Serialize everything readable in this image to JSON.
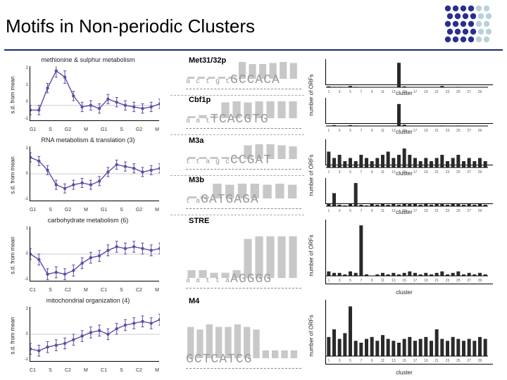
{
  "page": {
    "title": "Motifs in Non-periodic Clusters",
    "title_fontsize": 26,
    "accent_color": "#1a2a6c",
    "logo_colors": {
      "dark": "#2a2f8f",
      "light": "#b7d2da"
    }
  },
  "line_charts": [
    {
      "title": "methionine & sulphur metabolism",
      "ylabel": "s.d. from mean",
      "xticks": [
        "G1",
        "S",
        "G2",
        "M",
        "G1",
        "S",
        "G2",
        "M"
      ],
      "ylim": [
        -1,
        2.5
      ],
      "yticks": [
        "-1",
        "0",
        "1",
        "2"
      ],
      "values": [
        -0.3,
        -0.3,
        1.1,
        2.2,
        1.8,
        0.6,
        -0.1,
        0.0,
        -0.2,
        0.4,
        0.2,
        0.0,
        -0.1,
        -0.2,
        -0.1,
        0.1
      ],
      "errors": [
        0.3,
        0.3,
        0.3,
        0.4,
        0.4,
        0.3,
        0.3,
        0.3,
        0.3,
        0.3,
        0.3,
        0.3,
        0.3,
        0.3,
        0.3,
        0.3
      ],
      "color": "#5a4ea6",
      "marker": "circle"
    },
    {
      "title": "RNA metabolism & translation (3)",
      "ylabel": "s.d. from mean",
      "xticks": [
        "G1",
        "S",
        "G2",
        "M",
        "G1",
        "S",
        "G2",
        "M"
      ],
      "ylim": [
        -1.5,
        1.5
      ],
      "yticks": [
        "-1",
        "0",
        "1"
      ],
      "values": [
        0.9,
        0.7,
        0.2,
        -0.6,
        -0.8,
        -0.6,
        -0.5,
        -0.6,
        -0.4,
        0.1,
        0.5,
        0.4,
        0.3,
        0.1,
        0.2,
        0.3
      ],
      "errors": [
        0.25,
        0.25,
        0.25,
        0.25,
        0.25,
        0.25,
        0.25,
        0.25,
        0.25,
        0.25,
        0.25,
        0.25,
        0.25,
        0.25,
        0.25,
        0.25
      ],
      "color": "#5a4ea6",
      "marker": "circle"
    },
    {
      "title": "carbohydrate metabolism (6)",
      "ylabel": "s.d. from mean",
      "xticks": [
        "C1",
        "S",
        "C2",
        "M",
        "C1",
        "S",
        "C2",
        "M"
      ],
      "ylim": [
        -1.5,
        1.5
      ],
      "yticks": [
        "-1",
        "0",
        "1"
      ],
      "values": [
        0.0,
        -0.3,
        -1.1,
        -1.0,
        -1.1,
        -0.9,
        -0.5,
        -0.2,
        -0.1,
        0.2,
        0.4,
        0.3,
        0.4,
        0.3,
        0.2,
        0.3
      ],
      "errors": [
        0.3,
        0.3,
        0.3,
        0.3,
        0.3,
        0.3,
        0.3,
        0.3,
        0.3,
        0.3,
        0.3,
        0.3,
        0.3,
        0.3,
        0.3,
        0.3
      ],
      "color": "#5a4ea6",
      "marker": "circle"
    },
    {
      "title": "mitochondrial organization (4)",
      "ylabel": "s.d. from mean",
      "xticks": [
        "C1",
        "S",
        "C2",
        "M",
        "C1",
        "S",
        "C2",
        "M"
      ],
      "ylim": [
        -1.5,
        1.5
      ],
      "yticks": [
        "-1",
        "0",
        "1"
      ],
      "values": [
        -0.8,
        -0.9,
        -0.7,
        -0.6,
        -0.5,
        -0.3,
        -0.1,
        0.1,
        0.2,
        0.0,
        0.3,
        0.5,
        0.6,
        0.7,
        0.6,
        0.8
      ],
      "errors": [
        0.3,
        0.3,
        0.3,
        0.3,
        0.3,
        0.3,
        0.3,
        0.3,
        0.3,
        0.3,
        0.3,
        0.3,
        0.3,
        0.3,
        0.3,
        0.3
      ],
      "color": "#5a4ea6",
      "marker": "circle"
    }
  ],
  "seq_logos": [
    {
      "dual": true,
      "subs": [
        {
          "label": "Met31/32p",
          "seq_small": "a c t g t",
          "seq_tall": "GCCACA",
          "heights": [
            0.2,
            0.2,
            0.2,
            0.2,
            0.2,
            1.6,
            1.4,
            1.4,
            1.5,
            1.6,
            1.5
          ]
        },
        {
          "label": "Cbf1p",
          "seq_small": "a a t",
          "seq_tall": "TCACGTG",
          "heights": [
            0.2,
            0.3,
            0.2,
            1.5,
            1.6,
            1.5,
            1.6,
            1.6,
            1.6,
            1.6
          ]
        }
      ]
    },
    {
      "dual": true,
      "subs": [
        {
          "label": "M3a",
          "seq_small": "t t a g c",
          "seq_tall": "CCGAT",
          "heights": [
            0.2,
            0.2,
            0.2,
            0.2,
            0.2,
            1.3,
            1.4,
            1.4,
            1.3,
            1.2
          ]
        },
        {
          "label": "M3b",
          "seq_small": "t a",
          "seq_tall": "GATGAGA",
          "heights": [
            0.2,
            0.2,
            1.4,
            1.3,
            1.4,
            1.4,
            1.3,
            1.4,
            1.3
          ]
        }
      ]
    },
    {
      "dual": false,
      "subs": [
        {
          "label": "STRE",
          "seq_small": "a a t t a",
          "seq_tall": "AGGGG",
          "heights": [
            0.3,
            0.3,
            0.2,
            0.2,
            0.3,
            1.5,
            1.6,
            1.6,
            1.6,
            1.6
          ]
        }
      ]
    },
    {
      "dual": false,
      "subs": [
        {
          "label": "M4",
          "seq_small": "",
          "seq_tall": "GCTCATCG",
          "heights": [
            1.2,
            1.1,
            1.3,
            1.2,
            1.2,
            1.3,
            1.2,
            1.1,
            0.3,
            0.3,
            0.3,
            0.3
          ]
        }
      ]
    }
  ],
  "bar_charts": [
    {
      "dual": true,
      "ylabel": "number of ORFs",
      "xlabel": "cluster",
      "subs": [
        {
          "values": [
            2,
            1,
            1,
            0,
            3,
            1,
            0,
            0,
            0,
            0,
            0,
            0,
            0,
            58,
            2,
            0,
            0,
            0,
            0,
            0,
            0,
            3,
            0,
            0,
            1,
            0,
            0,
            0,
            0,
            0
          ],
          "ymax": 60
        },
        {
          "values": [
            1,
            2,
            0,
            0,
            2,
            1,
            0,
            0,
            0,
            0,
            0,
            0,
            0,
            52,
            3,
            0,
            0,
            0,
            0,
            0,
            0,
            1,
            0,
            0,
            1,
            0,
            0,
            0,
            0,
            0
          ],
          "ymax": 60
        }
      ],
      "bar_color": "#2a2a2a"
    },
    {
      "dual": true,
      "ylabel": "number of ORFs",
      "xlabel": "cluster",
      "subs": [
        {
          "values": [
            5,
            3,
            4,
            2,
            3,
            2,
            4,
            3,
            2,
            3,
            4,
            5,
            3,
            4,
            6,
            4,
            3,
            2,
            3,
            2,
            3,
            4,
            2,
            3,
            4,
            2,
            3,
            2,
            3,
            2
          ],
          "ymax": 8
        },
        {
          "values": [
            3,
            18,
            2,
            1,
            3,
            32,
            2,
            1,
            3,
            2,
            3,
            2,
            3,
            2,
            3,
            4,
            3,
            2,
            3,
            2,
            3,
            4,
            2,
            3,
            4,
            2,
            3,
            2,
            3,
            2
          ],
          "ymax": 35
        }
      ],
      "bar_color": "#2a2a2a"
    },
    {
      "dual": false,
      "ylabel": "number of ORFs",
      "xlabel": "cluster",
      "subs": [
        {
          "values": [
            3,
            2,
            2,
            1,
            3,
            2,
            34,
            1,
            0,
            1,
            2,
            1,
            2,
            1,
            2,
            3,
            2,
            1,
            2,
            1,
            2,
            3,
            1,
            2,
            3,
            1,
            2,
            1,
            2,
            1
          ],
          "ymax": 36
        }
      ],
      "bar_color": "#2a2a2a"
    },
    {
      "dual": false,
      "ylabel": "number of ORFs",
      "xlabel": "cluster",
      "subs": [
        {
          "values": [
            10,
            14,
            9,
            12,
            26,
            8,
            7,
            9,
            10,
            8,
            11,
            9,
            8,
            7,
            9,
            10,
            8,
            9,
            10,
            8,
            14,
            9,
            8,
            10,
            9,
            8,
            9,
            8,
            10,
            9
          ],
          "ymax": 28
        }
      ],
      "bar_color": "#2a2a2a"
    }
  ]
}
